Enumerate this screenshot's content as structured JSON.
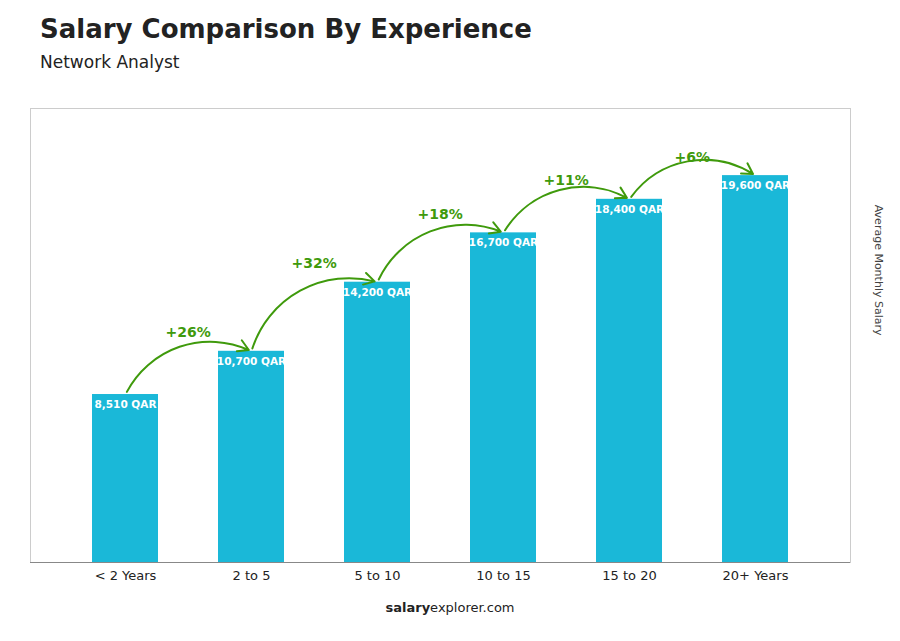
{
  "chart_data": {
    "type": "bar",
    "title": "Salary Comparison By Experience",
    "subtitle": "Network Analyst",
    "categories": [
      "< 2 Years",
      "2 to 5",
      "5 to 10",
      "10 to 15",
      "15 to 20",
      "20+ Years"
    ],
    "values": [
      8510,
      10700,
      14200,
      16700,
      18400,
      19600
    ],
    "value_labels": [
      "8,510 QAR",
      "10,700 QAR",
      "14,200 QAR",
      "16,700 QAR",
      "18,400 QAR",
      "19,600 QAR"
    ],
    "data_labels": true,
    "color": "#1ab8d8",
    "ylabel": "Average Monthly Salary",
    "ylim": [
      0,
      23000
    ],
    "yticks": [],
    "tick_labels": "x",
    "grid": false,
    "annotations": [
      {
        "text": "+26%",
        "from": "< 2 Years",
        "to": "2 to 5"
      },
      {
        "text": "+32%",
        "from": "2 to 5",
        "to": "5 to 10"
      },
      {
        "text": "+18%",
        "from": "5 to 10",
        "to": "10 to 15"
      },
      {
        "text": "+11%",
        "from": "10 to 15",
        "to": "15 to 20"
      },
      {
        "text": "+6%",
        "from": "15 to 20",
        "to": "20+ Years"
      }
    ],
    "footer": [
      "salary",
      "explorer.com"
    ]
  }
}
